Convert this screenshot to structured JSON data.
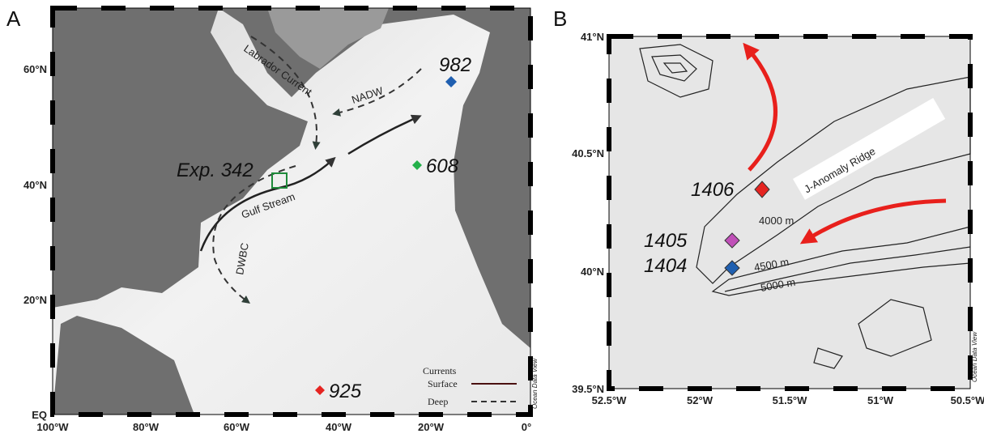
{
  "panel_a": {
    "label": "A",
    "lat_labels": [
      "60°N",
      "40°N",
      "20°N",
      "EQ"
    ],
    "lon_labels": [
      "100°W",
      "80°W",
      "60°W",
      "40°W",
      "20°W",
      "0°"
    ],
    "annotations": {
      "labrador_current": "Labrador Current",
      "nadw": "NADW",
      "gulf_stream": "Gulf Stream",
      "dwbc": "DWBC",
      "expedition": "Exp. 342"
    },
    "sites": [
      "982",
      "608",
      "925"
    ],
    "legend": {
      "title": "Currents",
      "surface": "Surface",
      "deep": "Deep"
    },
    "credit": "Ocean Data View"
  },
  "panel_b": {
    "label": "B",
    "lat_labels": [
      "41°N",
      "40.5°N",
      "40°N",
      "39.5°N"
    ],
    "lon_labels": [
      "52.5°W",
      "52°W",
      "51.5°W",
      "51°W",
      "50.5°W"
    ],
    "ridge": "J-Anomaly Ridge",
    "sites": [
      "1406",
      "1405",
      "1404"
    ],
    "contours": [
      "4000 m",
      "4500 m",
      "5000 m"
    ],
    "credit": "Ocean Data View"
  }
}
